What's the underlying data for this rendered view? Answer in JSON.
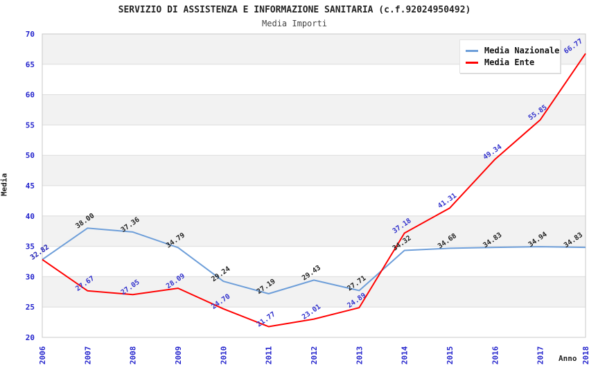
{
  "chart_data": {
    "type": "line",
    "title": "SERVIZIO DI ASSISTENZA E INFORMAZIONE SANITARIA (c.f.92024950492)",
    "subtitle": "Media Importi",
    "xlabel": "Anno",
    "ylabel": "Media",
    "ylim": [
      20,
      70
    ],
    "ytick_step": 5,
    "grid": true,
    "legend_position": "top-right",
    "categories": [
      "2006",
      "2007",
      "2008",
      "2009",
      "2010",
      "2011",
      "2012",
      "2013",
      "2014",
      "2015",
      "2016",
      "2017",
      "2018"
    ],
    "series": [
      {
        "name": "Media Nazionale",
        "color": "#6D9ED9",
        "label_color": "#222222",
        "values": [
          32.82,
          38.0,
          37.36,
          34.79,
          29.24,
          27.19,
          29.43,
          27.71,
          34.32,
          34.68,
          34.83,
          34.94,
          34.83
        ]
      },
      {
        "name": "Media Ente",
        "color": "#FF0000",
        "label_color": "#3333CC",
        "values": [
          32.82,
          27.67,
          27.05,
          28.09,
          24.7,
          21.77,
          23.01,
          24.89,
          37.18,
          41.31,
          49.34,
          55.85,
          66.77
        ]
      }
    ],
    "colors": {
      "tick_label": "#2222CC",
      "band": "#F2F2F2",
      "gridline": "#DCDCDC",
      "plot_border": "#C8C8C8"
    }
  }
}
